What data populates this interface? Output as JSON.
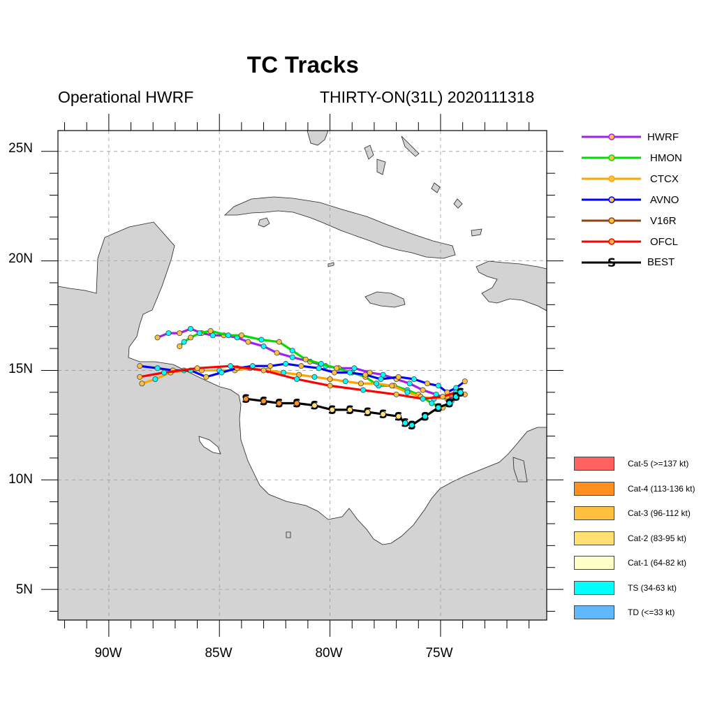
{
  "title": "TC Tracks",
  "subtitle_left": "Operational HWRF",
  "subtitle_right": "THIRTY-ON(31L) 2020111318",
  "y_labels": [
    "25N",
    "20N",
    "15N",
    "10N",
    "5N"
  ],
  "x_labels": [
    "90W",
    "85W",
    "80W",
    "75W"
  ],
  "legend": [
    {
      "name": "HWRF",
      "color": "#a020f0"
    },
    {
      "name": "HMON",
      "color": "#00dd00"
    },
    {
      "name": "CTCX",
      "color": "#ffa500"
    },
    {
      "name": "AVNO",
      "color": "#0000ff"
    },
    {
      "name": "V16R",
      "color": "#8b4513"
    },
    {
      "name": "OFCL",
      "color": "#ff0000"
    },
    {
      "name": "BEST",
      "color": "#000000"
    }
  ],
  "categories": [
    {
      "label": "Cat-5 (>=137 kt)",
      "color": "#ff6060"
    },
    {
      "label": "Cat-4 (113-136 kt)",
      "color": "#ff9020"
    },
    {
      "label": "Cat-3 (96-112 kt)",
      "color": "#ffc040"
    },
    {
      "label": "Cat-2 (83-95 kt)",
      "color": "#ffe070"
    },
    {
      "label": "Cat-1 (64-82 kt)",
      "color": "#ffffc8"
    },
    {
      "label": "TS (34-63 kt)",
      "color": "#00ffff"
    },
    {
      "label": "TD (<=33 kt)",
      "color": "#60b8ff"
    }
  ],
  "map": {
    "lon_range": [
      -92.3,
      -70.2
    ],
    "lat_range": [
      3.6,
      25.95
    ],
    "grid": true,
    "land_color": "#d3d3d3"
  },
  "tracks": [
    {
      "name": "HWRF",
      "color": "#a020f0",
      "points": [
        [
          -87.8,
          16.5
        ],
        [
          -87.3,
          16.7
        ],
        [
          -86.8,
          16.7
        ],
        [
          -86.3,
          16.9
        ],
        [
          -85.8,
          16.7
        ],
        [
          -85.3,
          16.6
        ],
        [
          -84.8,
          16.6
        ],
        [
          -84.2,
          16.5
        ],
        [
          -83.7,
          16.3
        ],
        [
          -83.0,
          16.1
        ],
        [
          -82.4,
          15.8
        ],
        [
          -81.7,
          15.6
        ],
        [
          -80.9,
          15.4
        ],
        [
          -80.2,
          15.2
        ],
        [
          -79.6,
          15.1
        ],
        [
          -78.9,
          15.1
        ],
        [
          -78.2,
          14.9
        ],
        [
          -77.6,
          14.8
        ],
        [
          -77.0,
          14.6
        ],
        [
          -76.4,
          14.4
        ],
        [
          -75.8,
          14.1
        ],
        [
          -75.2,
          13.9
        ],
        [
          -74.7,
          13.7
        ],
        [
          -74.2,
          13.9
        ],
        [
          -73.9,
          13.9
        ]
      ]
    },
    {
      "name": "HMON",
      "color": "#00dd00",
      "points": [
        [
          -86.8,
          16.1
        ],
        [
          -86.6,
          16.3
        ],
        [
          -86.3,
          16.5
        ],
        [
          -85.9,
          16.7
        ],
        [
          -85.4,
          16.8
        ],
        [
          -84.6,
          16.6
        ],
        [
          -84.0,
          16.6
        ],
        [
          -83.1,
          16.4
        ],
        [
          -82.3,
          16.3
        ],
        [
          -81.7,
          15.9
        ],
        [
          -81.1,
          15.5
        ],
        [
          -80.4,
          15.3
        ],
        [
          -79.7,
          15.1
        ],
        [
          -79.0,
          14.9
        ],
        [
          -78.4,
          14.7
        ],
        [
          -77.8,
          14.3
        ],
        [
          -77.1,
          14.3
        ],
        [
          -76.5,
          14.1
        ],
        [
          -76.0,
          13.9
        ],
        [
          -75.4,
          13.5
        ],
        [
          -74.9,
          13.3
        ],
        [
          -74.5,
          13.6
        ],
        [
          -74.2,
          14.0
        ]
      ]
    },
    {
      "name": "CTCX",
      "color": "#ffa500",
      "points": [
        [
          -88.5,
          14.4
        ],
        [
          -87.9,
          14.6
        ],
        [
          -87.2,
          14.9
        ],
        [
          -86.6,
          15.0
        ],
        [
          -85.8,
          15.0
        ],
        [
          -85.0,
          15.0
        ],
        [
          -84.3,
          15.0
        ],
        [
          -83.6,
          15.1
        ],
        [
          -82.8,
          15.0
        ],
        [
          -82.1,
          14.9
        ],
        [
          -81.4,
          14.8
        ],
        [
          -80.7,
          14.7
        ],
        [
          -80.0,
          14.6
        ],
        [
          -79.3,
          14.5
        ],
        [
          -78.6,
          14.4
        ],
        [
          -77.9,
          14.4
        ],
        [
          -77.2,
          14.3
        ],
        [
          -76.5,
          14.0
        ],
        [
          -75.9,
          13.8
        ],
        [
          -75.3,
          13.7
        ],
        [
          -74.7,
          13.8
        ],
        [
          -74.3,
          13.9
        ]
      ]
    },
    {
      "name": "AVNO",
      "color": "#0000ff",
      "points": [
        [
          -88.6,
          15.2
        ],
        [
          -87.8,
          15.1
        ],
        [
          -87.1,
          15.0
        ],
        [
          -86.3,
          15.0
        ],
        [
          -85.6,
          14.7
        ],
        [
          -84.9,
          14.9
        ],
        [
          -84.2,
          15.1
        ],
        [
          -83.5,
          15.2
        ],
        [
          -82.7,
          15.2
        ],
        [
          -82.0,
          15.3
        ],
        [
          -81.3,
          15.2
        ],
        [
          -80.5,
          15.1
        ],
        [
          -79.8,
          14.9
        ],
        [
          -79.1,
          14.9
        ],
        [
          -78.4,
          14.8
        ],
        [
          -77.7,
          14.6
        ],
        [
          -76.9,
          14.7
        ],
        [
          -76.2,
          14.6
        ],
        [
          -75.6,
          14.4
        ],
        [
          -75.1,
          14.3
        ],
        [
          -74.7,
          14.0
        ],
        [
          -74.3,
          14.2
        ],
        [
          -73.9,
          14.5
        ]
      ]
    },
    {
      "name": "OFCL",
      "color": "#ff0000",
      "points": [
        [
          -88.6,
          14.7
        ],
        [
          -87.5,
          14.9
        ],
        [
          -86.0,
          15.1
        ],
        [
          -84.5,
          15.2
        ],
        [
          -83.0,
          15.0
        ],
        [
          -81.5,
          14.6
        ],
        [
          -80.0,
          14.3
        ],
        [
          -78.5,
          14.1
        ],
        [
          -77.0,
          13.9
        ],
        [
          -75.8,
          13.7
        ],
        [
          -74.9,
          13.8
        ],
        [
          -74.3,
          14.0
        ]
      ]
    },
    {
      "name": "BEST",
      "color": "#000000",
      "points": [
        [
          -83.8,
          13.7
        ],
        [
          -83.0,
          13.6
        ],
        [
          -82.3,
          13.5
        ],
        [
          -81.5,
          13.5
        ],
        [
          -80.7,
          13.4
        ],
        [
          -79.9,
          13.2
        ],
        [
          -79.1,
          13.2
        ],
        [
          -78.3,
          13.1
        ],
        [
          -77.6,
          13.0
        ],
        [
          -76.9,
          12.9
        ],
        [
          -76.6,
          12.6
        ],
        [
          -76.3,
          12.5
        ],
        [
          -75.7,
          12.9
        ],
        [
          -75.1,
          13.3
        ],
        [
          -74.6,
          13.5
        ],
        [
          -74.3,
          13.8
        ],
        [
          -74.1,
          14.0
        ]
      ]
    }
  ]
}
